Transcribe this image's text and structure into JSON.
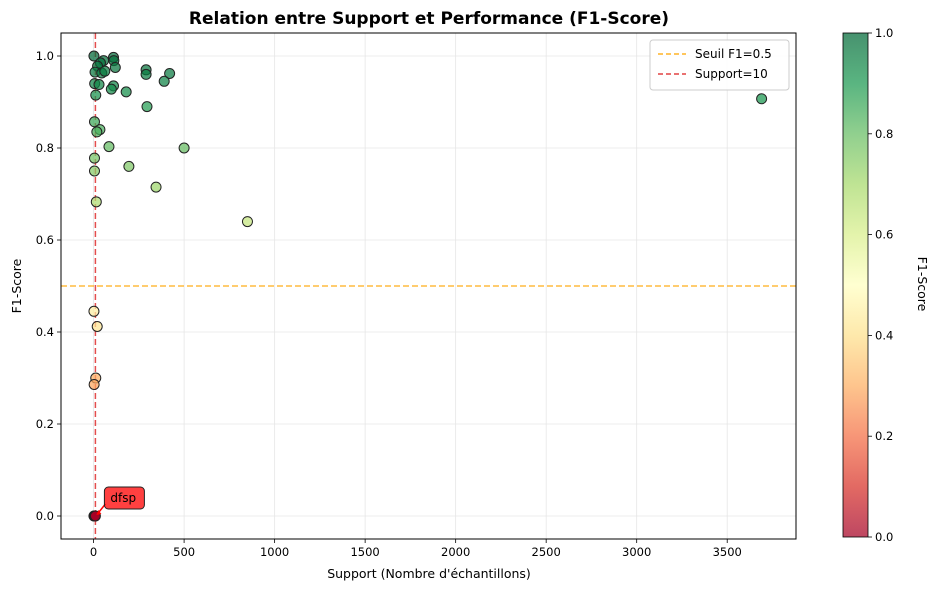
{
  "chart_data": {
    "type": "scatter",
    "title": "Relation entre Support et Performance (F1-Score)",
    "xlabel": "Support (Nombre d'échantillons)",
    "ylabel": "F1-Score",
    "xlim": [
      -180,
      3880
    ],
    "ylim": [
      -0.05,
      1.05
    ],
    "xticks": [
      0,
      500,
      1000,
      1500,
      2000,
      2500,
      3000,
      3500
    ],
    "yticks": [
      0.0,
      0.2,
      0.4,
      0.6,
      0.8,
      1.0
    ],
    "xtick_labels": [
      "0",
      "500",
      "1000",
      "1500",
      "2000",
      "2500",
      "3000",
      "3500"
    ],
    "ytick_labels": [
      "0.0",
      "0.2",
      "0.4",
      "0.6",
      "0.8",
      "1.0"
    ],
    "grid": true,
    "legend": {
      "placement": "top-right",
      "entries": [
        {
          "label": "Seuil F1=0.5",
          "color": "#ffa500",
          "style": "dashed"
        },
        {
          "label": "Support=10",
          "color": "#dd2222",
          "style": "dashed"
        }
      ]
    },
    "reference_lines": {
      "horizontal": {
        "y": 0.5,
        "color": "#ffa500"
      },
      "vertical": {
        "x": 10,
        "color": "#dd2222"
      }
    },
    "colorbar": {
      "label": "F1-Score",
      "range": [
        0,
        1
      ],
      "ticks": [
        0.0,
        0.2,
        0.4,
        0.6,
        0.8,
        1.0
      ],
      "tick_labels": [
        "0.0",
        "0.2",
        "0.4",
        "0.6",
        "0.8",
        "1.0"
      ],
      "colormap": "RdYlGn"
    },
    "annotation": {
      "text": "dfsp",
      "x": 10,
      "y": 0.0
    },
    "points": [
      {
        "x": 2,
        "y": 1.0
      },
      {
        "x": 55,
        "y": 0.99
      },
      {
        "x": 110,
        "y": 0.997
      },
      {
        "x": 112,
        "y": 0.99
      },
      {
        "x": 38,
        "y": 0.985
      },
      {
        "x": 22,
        "y": 0.978
      },
      {
        "x": 120,
        "y": 0.975
      },
      {
        "x": 290,
        "y": 0.97
      },
      {
        "x": 8,
        "y": 0.965
      },
      {
        "x": 45,
        "y": 0.963
      },
      {
        "x": 62,
        "y": 0.967
      },
      {
        "x": 290,
        "y": 0.96
      },
      {
        "x": 420,
        "y": 0.962
      },
      {
        "x": 390,
        "y": 0.945
      },
      {
        "x": 6,
        "y": 0.94
      },
      {
        "x": 30,
        "y": 0.938
      },
      {
        "x": 110,
        "y": 0.935
      },
      {
        "x": 98,
        "y": 0.928
      },
      {
        "x": 180,
        "y": 0.922
      },
      {
        "x": 12,
        "y": 0.915
      },
      {
        "x": 3690,
        "y": 0.907
      },
      {
        "x": 295,
        "y": 0.89
      },
      {
        "x": 5,
        "y": 0.857
      },
      {
        "x": 35,
        "y": 0.84
      },
      {
        "x": 18,
        "y": 0.835
      },
      {
        "x": 85,
        "y": 0.803
      },
      {
        "x": 500,
        "y": 0.8
      },
      {
        "x": 5,
        "y": 0.778
      },
      {
        "x": 195,
        "y": 0.76
      },
      {
        "x": 5,
        "y": 0.75
      },
      {
        "x": 345,
        "y": 0.715
      },
      {
        "x": 15,
        "y": 0.683
      },
      {
        "x": 850,
        "y": 0.64
      },
      {
        "x": 2,
        "y": 0.445
      },
      {
        "x": 20,
        "y": 0.412
      },
      {
        "x": 12,
        "y": 0.3
      },
      {
        "x": 3,
        "y": 0.286
      },
      {
        "x": 2,
        "y": 0.0
      },
      {
        "x": 5,
        "y": 0.0
      },
      {
        "x": 7,
        "y": 0.0
      },
      {
        "x": 10,
        "y": 0.0
      }
    ]
  }
}
